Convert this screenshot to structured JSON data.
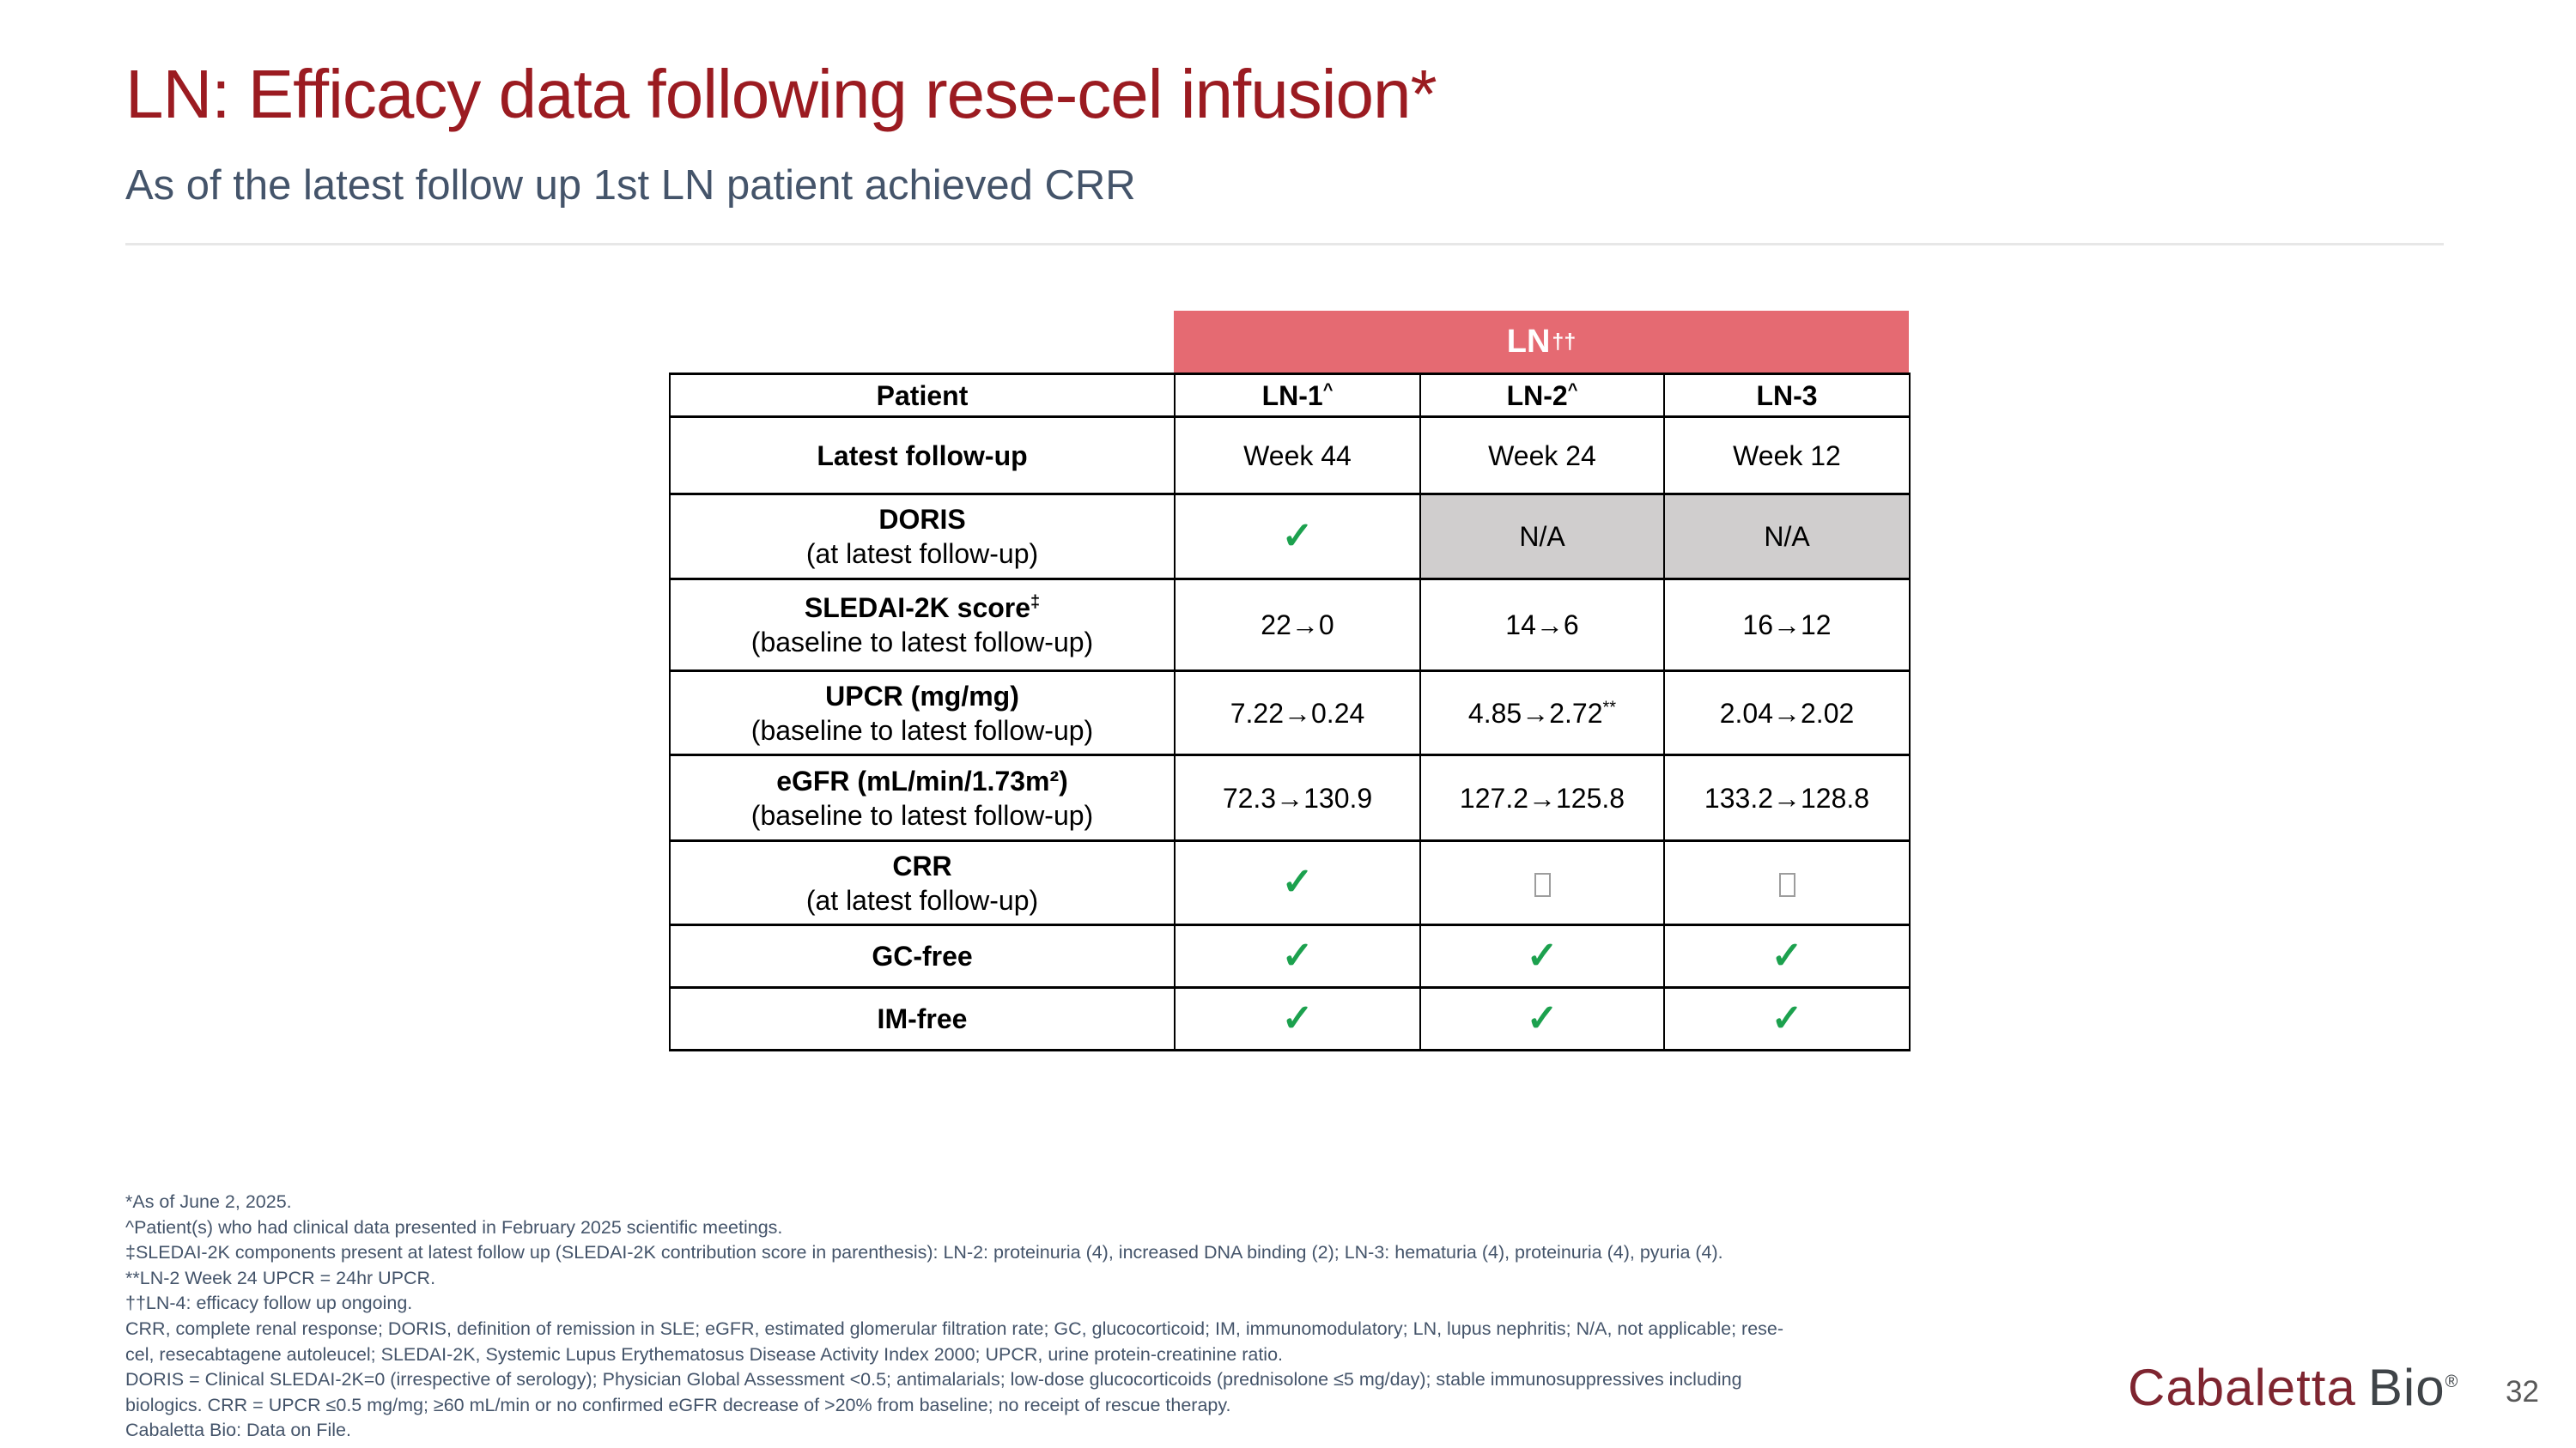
{
  "header": {
    "title": "LN: Efficacy data following rese-cel infusion*",
    "subtitle": "As of the latest follow up 1st LN patient achieved CRR"
  },
  "table": {
    "banner": {
      "text": "LN",
      "sup": "††"
    },
    "check_symbol": "✓",
    "na_label": "N/A",
    "header_row": {
      "label": "Patient",
      "columns": [
        {
          "text": "LN-1",
          "sup": "^"
        },
        {
          "text": "LN-2",
          "sup": "^"
        },
        {
          "text": "LN-3",
          "sup": ""
        }
      ]
    },
    "rows": [
      {
        "label": "Latest follow-up",
        "label_sup": "",
        "sublabel": "",
        "cells": [
          {
            "type": "text",
            "value": "Week 44"
          },
          {
            "type": "text",
            "value": "Week 24"
          },
          {
            "type": "text",
            "value": "Week 12"
          }
        ]
      },
      {
        "label": "DORIS",
        "label_sup": "",
        "sublabel": "(at latest follow-up)",
        "cells": [
          {
            "type": "check"
          },
          {
            "type": "na"
          },
          {
            "type": "na"
          }
        ]
      },
      {
        "label": "SLEDAI-2K score",
        "label_sup": "‡",
        "sublabel": "(baseline to latest follow-up)",
        "cells": [
          {
            "type": "text",
            "value": "22→0"
          },
          {
            "type": "text",
            "value": "14→6"
          },
          {
            "type": "text",
            "value": "16→12"
          }
        ]
      },
      {
        "label": "UPCR (mg/mg)",
        "label_sup": "",
        "sublabel": "(baseline to latest follow-up)",
        "cells": [
          {
            "type": "text",
            "value": "7.22→0.24"
          },
          {
            "type": "text",
            "value": "4.85→2.72",
            "sup": "**"
          },
          {
            "type": "text",
            "value": "2.04→2.02"
          }
        ]
      },
      {
        "label": "eGFR (mL/min/1.73m²)",
        "label_sup": "",
        "sublabel": "(baseline to latest follow-up)",
        "cells": [
          {
            "type": "text",
            "value": "72.3→130.9"
          },
          {
            "type": "text",
            "value": "127.2→125.8"
          },
          {
            "type": "text",
            "value": "133.2→128.8"
          }
        ]
      },
      {
        "label": "CRR",
        "label_sup": "",
        "sublabel": "(at latest follow-up)",
        "cells": [
          {
            "type": "check"
          },
          {
            "type": "box"
          },
          {
            "type": "box"
          }
        ]
      },
      {
        "label": "GC-free",
        "label_sup": "",
        "sublabel": "",
        "cells": [
          {
            "type": "check"
          },
          {
            "type": "check"
          },
          {
            "type": "check"
          }
        ]
      },
      {
        "label": "IM-free",
        "label_sup": "",
        "sublabel": "",
        "cells": [
          {
            "type": "check"
          },
          {
            "type": "check"
          },
          {
            "type": "check"
          }
        ]
      }
    ]
  },
  "footnotes": [
    "*As of June 2, 2025.",
    "^Patient(s) who had clinical data presented in February 2025 scientific meetings.",
    "‡SLEDAI-2K components present at latest follow up (SLEDAI-2K contribution score in parenthesis): LN-2: proteinuria (4), increased DNA binding (2); LN-3: hematuria (4), proteinuria (4), pyuria (4).",
    "**LN-2 Week 24 UPCR = 24hr UPCR.",
    "††LN-4: efficacy follow up ongoing.",
    "CRR, complete renal response; DORIS, definition of remission in SLE; eGFR, estimated glomerular filtration rate; GC, glucocorticoid; IM, immunomodulatory; LN, lupus nephritis; N/A, not applicable; rese-",
    "cel, resecabtagene autoleucel; SLEDAI-2K, Systemic Lupus Erythematosus Disease Activity Index 2000; UPCR, urine protein-creatinine ratio.",
    "DORIS = Clinical SLEDAI-2K=0 (irrespective of serology); Physician Global Assessment <0.5; antimalarials; low-dose glucocorticoids (prednisolone ≤5 mg/day); stable immunosuppressives including",
    "biologics. CRR = UPCR ≤0.5 mg/mg; ≥60 mL/min or no confirmed eGFR decrease of >20% from baseline; no receipt of rescue therapy.",
    "Cabaletta Bio: Data on File."
  ],
  "logo": {
    "word1": "Cabaletta",
    "word2": "Bio",
    "registered": "®"
  },
  "footer": {
    "page_number": "32"
  },
  "colors": {
    "title": "#9B1B21",
    "subtitle": "#44546A",
    "banner": "#E56A72",
    "banner_text": "#FFFFFF",
    "na_cell_bg": "#D0CECE",
    "check_green": "#1CA14E",
    "logo_maroon": "#7E2530",
    "logo_gray": "#3F4448",
    "table_border": "#000000",
    "divider": "#E7E7E7",
    "page_number": "#595959"
  }
}
